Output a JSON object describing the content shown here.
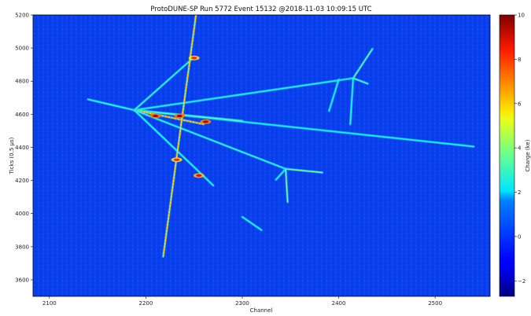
{
  "chart_data": {
    "type": "heatmap",
    "title": "ProtoDUNE-SP Run 5772 Event 15132 @2018-11-03 10:09:15 UTC",
    "xlabel": "Channel",
    "ylabel": "Ticks (0.5 μs)",
    "xlim": [
      2083,
      2557
    ],
    "ylim": [
      3500,
      5200
    ],
    "xticks": [
      2100,
      2200,
      2300,
      2400,
      2500
    ],
    "xtick_labels": [
      "2100",
      "2200",
      "2300",
      "2400",
      "2500"
    ],
    "yticks": [
      3600,
      3800,
      4000,
      4200,
      4400,
      4600,
      4800,
      5000,
      5200
    ],
    "ytick_labels": [
      "3600",
      "3800",
      "4000",
      "4200",
      "4400",
      "4600",
      "4800",
      "5000",
      "5200"
    ],
    "colorbar": {
      "label": "Charge (ke)",
      "range": [
        -2.7,
        10
      ],
      "ticks": [
        -2,
        0,
        2,
        4,
        6,
        8,
        10
      ],
      "tick_labels": [
        "−2",
        "0",
        "2",
        "4",
        "6",
        "8",
        "10"
      ],
      "colormap": "jet"
    },
    "background_charge": 0.2,
    "tracks": [
      {
        "from": [
          2140,
          4690
        ],
        "to": [
          2188,
          4625
        ],
        "charge": 2.4
      },
      {
        "from": [
          2188,
          4625
        ],
        "to": [
          2540,
          4405
        ],
        "charge": 2.2
      },
      {
        "from": [
          2188,
          4625
        ],
        "to": [
          2415,
          4818
        ],
        "charge": 2.3
      },
      {
        "from": [
          2188,
          4625
        ],
        "to": [
          2250,
          4945
        ],
        "charge": 2.6
      },
      {
        "from": [
          2188,
          4625
        ],
        "to": [
          2300,
          4560
        ],
        "charge": 3.0
      },
      {
        "from": [
          2188,
          4625
        ],
        "to": [
          2260,
          4540
        ],
        "charge": 6.5
      },
      {
        "from": [
          2188,
          4625
        ],
        "to": [
          2345,
          4270
        ],
        "charge": 2.5
      },
      {
        "from": [
          2188,
          4625
        ],
        "to": [
          2270,
          4170
        ],
        "charge": 2.4
      },
      {
        "from": [
          2345,
          4270
        ],
        "to": [
          2383,
          4248
        ],
        "charge": 3.5
      },
      {
        "from": [
          2345,
          4270
        ],
        "to": [
          2347,
          4070
        ],
        "charge": 3.5
      },
      {
        "from": [
          2345,
          4270
        ],
        "to": [
          2335,
          4205
        ],
        "charge": 2.3
      },
      {
        "from": [
          2415,
          4818
        ],
        "to": [
          2435,
          4995
        ],
        "charge": 3.2
      },
      {
        "from": [
          2415,
          4818
        ],
        "to": [
          2430,
          4785
        ],
        "charge": 3.0
      },
      {
        "from": [
          2415,
          4818
        ],
        "to": [
          2412,
          4540
        ],
        "charge": 2.4
      },
      {
        "from": [
          2400,
          4810
        ],
        "to": [
          2390,
          4620
        ],
        "charge": 2.2
      },
      {
        "from": [
          2300,
          3980
        ],
        "to": [
          2320,
          3900
        ],
        "charge": 2.3
      },
      {
        "from": [
          2218,
          3740
        ],
        "to": [
          2252,
          5200
        ],
        "charge": 6.0
      }
    ],
    "hotspots": [
      {
        "x": 2210,
        "y": 4590,
        "charge": 9.5
      },
      {
        "x": 2235,
        "y": 4590,
        "charge": 9.5
      },
      {
        "x": 2262,
        "y": 4555,
        "charge": 9.2
      },
      {
        "x": 2255,
        "y": 4230,
        "charge": 8.5
      },
      {
        "x": 2232,
        "y": 4325,
        "charge": 8.0
      },
      {
        "x": 2250,
        "y": 4940,
        "charge": 8.0
      }
    ]
  }
}
